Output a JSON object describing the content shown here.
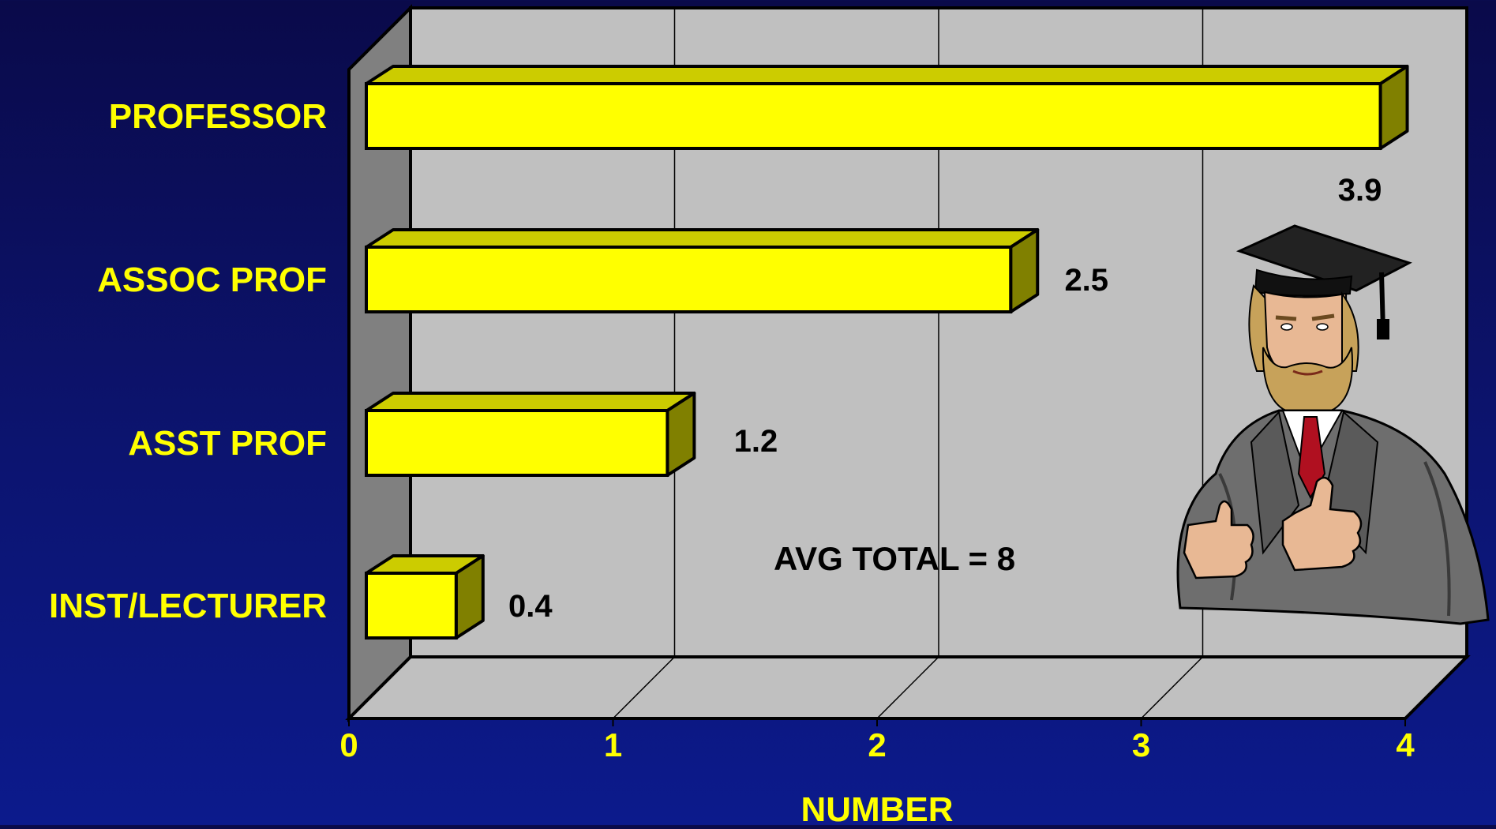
{
  "chart_data": {
    "type": "bar",
    "orientation": "horizontal",
    "style": "3d",
    "categories": [
      "PROFESSOR",
      "ASSOC PROF",
      "ASST PROF",
      "INST/LECTURER"
    ],
    "values": [
      3.9,
      2.5,
      1.2,
      0.4
    ],
    "data_labels": [
      "3.9",
      "2.5",
      "1.2",
      "0.4"
    ],
    "xlabel": "NUMBER",
    "xlim": [
      0,
      4
    ],
    "xticks": [
      "0",
      "1",
      "2",
      "3",
      "4"
    ],
    "grid": true,
    "annotation": "AVG TOTAL = 8"
  },
  "colors": {
    "background": "#0c1470",
    "bar_front": "#ffff00",
    "bar_top": "#cccc00",
    "bar_side": "#808000",
    "plot_back_wall": "#c0c0c0",
    "plot_side_wall": "#808080",
    "category_text": "#ffff00",
    "tick_text": "#ffff00",
    "value_text": "#000000"
  },
  "illustration": "professor-in-graduation-cap-thumbs-up"
}
